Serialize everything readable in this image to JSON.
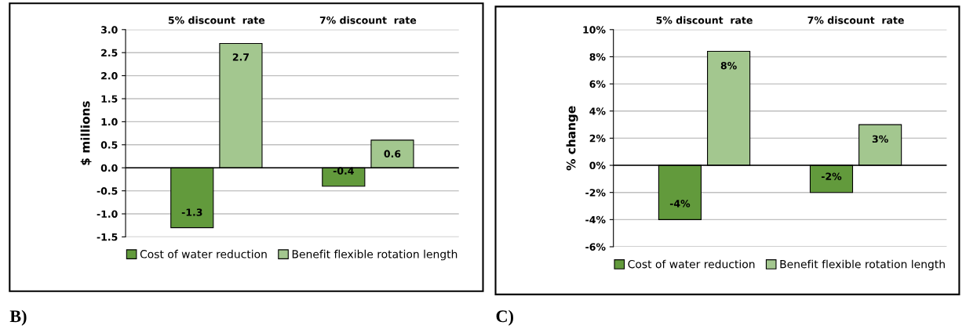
{
  "chart_data": [
    {
      "type": "bar",
      "ylabel": "$ millions",
      "categories": [
        "5% discount  rate",
        "7% discount  rate"
      ],
      "series": [
        {
          "name": "Cost of water reduction",
          "color": "#629a3c",
          "values": [
            -1.3,
            -0.4
          ]
        },
        {
          "name": "Benefit flexible rotation length",
          "color": "#a3c78f",
          "values": [
            2.7,
            0.6
          ]
        }
      ],
      "ylim": [
        -1.5,
        3.0
      ],
      "yticks": [
        {
          "value": -1.5,
          "label": "-1.5"
        },
        {
          "value": -1.0,
          "label": "-1.0"
        },
        {
          "value": -0.5,
          "label": "-0.5"
        },
        {
          "value": 0,
          "label": "0.0"
        },
        {
          "value": 0.5,
          "label": "0.5"
        },
        {
          "value": 1.0,
          "label": "1.0"
        },
        {
          "value": 1.5,
          "label": "1.5"
        },
        {
          "value": 2.0,
          "label": "2.0"
        },
        {
          "value": 2.5,
          "label": "2.5"
        },
        {
          "value": 3.0,
          "label": "3.0"
        }
      ],
      "grid": "y",
      "legend": "bottom",
      "data_labels": true,
      "annotations": [
        "B)"
      ]
    },
    {
      "type": "bar",
      "ylabel": "% change",
      "categories": [
        "5% discount  rate",
        "7% discount  rate"
      ],
      "series": [
        {
          "name": "Cost of water reduction",
          "color": "#629a3c",
          "values": [
            -4.0,
            -2.0
          ],
          "value_labels": [
            "-4%",
            "-2%"
          ]
        },
        {
          "name": "Benefit flexible rotation length",
          "color": "#a3c78f",
          "values": [
            8.4,
            3.0
          ],
          "value_labels": [
            "8%",
            "3%"
          ]
        }
      ],
      "ylim": [
        -6,
        10
      ],
      "yticks": [
        {
          "value": -6,
          "label": "-6%"
        },
        {
          "value": -4,
          "label": "-4%"
        },
        {
          "value": -2,
          "label": "-2%"
        },
        {
          "value": 0,
          "label": "0%"
        },
        {
          "value": 2,
          "label": "2%"
        },
        {
          "value": 4,
          "label": "4%"
        },
        {
          "value": 6,
          "label": "6%"
        },
        {
          "value": 8,
          "label": "8%"
        },
        {
          "value": 10,
          "label": "10%"
        }
      ],
      "grid": "y",
      "legend": "bottom",
      "annotations": [
        "C)"
      ]
    }
  ]
}
